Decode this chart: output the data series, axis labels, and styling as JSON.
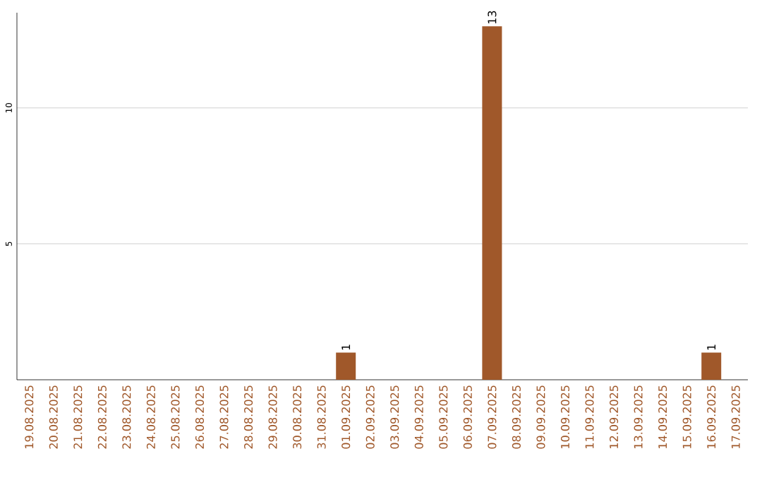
{
  "chart_data": {
    "type": "bar",
    "categories": [
      "19.08.2025",
      "20.08.2025",
      "21.08.2025",
      "22.08.2025",
      "23.08.2025",
      "24.08.2025",
      "25.08.2025",
      "26.08.2025",
      "27.08.2025",
      "28.08.2025",
      "29.08.2025",
      "30.08.2025",
      "31.08.2025",
      "01.09.2025",
      "02.09.2025",
      "03.09.2025",
      "04.09.2025",
      "05.09.2025",
      "06.09.2025",
      "07.09.2025",
      "08.09.2025",
      "09.09.2025",
      "10.09.2025",
      "11.09.2025",
      "12.09.2025",
      "13.09.2025",
      "14.09.2025",
      "15.09.2025",
      "16.09.2025",
      "17.09.2025"
    ],
    "values": [
      0,
      0,
      0,
      0,
      0,
      0,
      0,
      0,
      0,
      0,
      0,
      0,
      0,
      1,
      0,
      0,
      0,
      0,
      0,
      13,
      0,
      0,
      0,
      0,
      0,
      0,
      0,
      0,
      1,
      0
    ],
    "value_labels": [
      null,
      null,
      null,
      null,
      null,
      null,
      null,
      null,
      null,
      null,
      null,
      null,
      null,
      "1",
      null,
      null,
      null,
      null,
      null,
      "13",
      null,
      null,
      null,
      null,
      null,
      null,
      null,
      null,
      "1",
      null
    ],
    "color": "#a0582a",
    "ylim": [
      0,
      13.5
    ],
    "yticks": [
      5,
      10
    ],
    "grid": "y"
  }
}
